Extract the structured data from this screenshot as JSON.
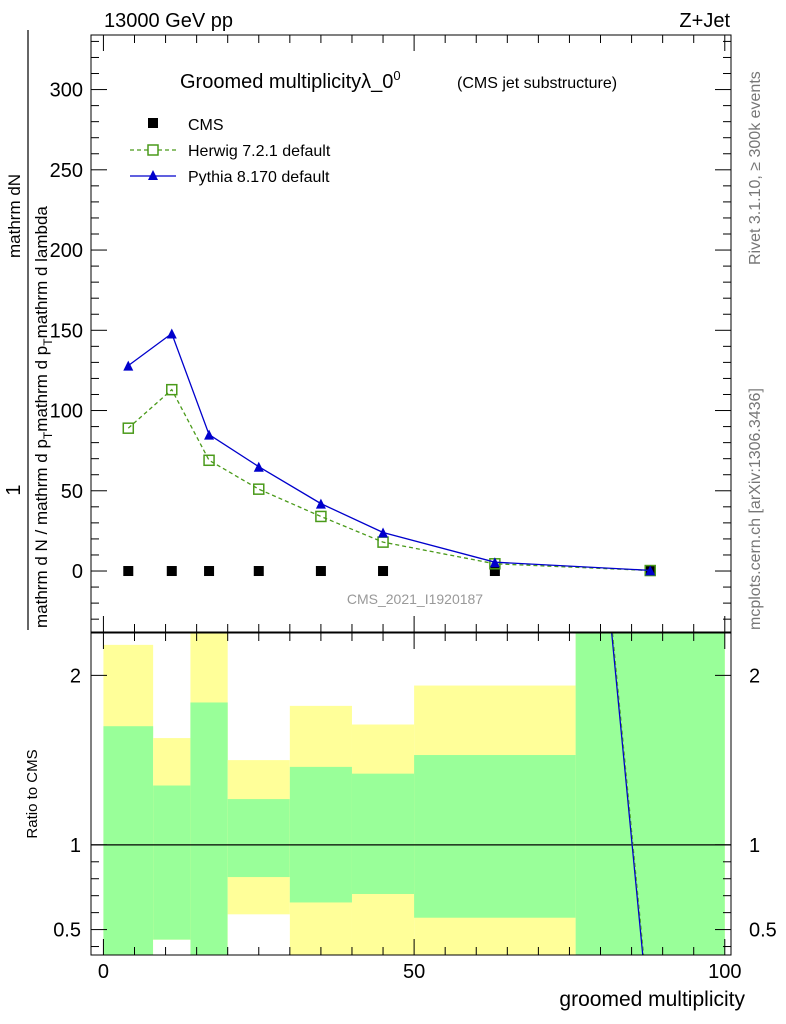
{
  "header": {
    "left": "13000 GeV pp",
    "right": "Z+Jet"
  },
  "side_labels": {
    "rivet": "Rivet 3.1.10, ≥ 300k events",
    "mcplots": "mcplots.cern.ch [arXiv:1306.3436]"
  },
  "chart_data": [
    {
      "type": "line",
      "title": "Groomed multiplicityλ_0",
      "title_sup": "0",
      "subtitle": "(CMS jet substructure)",
      "watermark": "CMS_2021_I1920187",
      "ylabel": {
        "num_1": "1",
        "num_2": "mathrm dN",
        "den_1": "mathrm d N / mathrm d p",
        "den_sub": "T",
        "den_2": "mathrm d p",
        "den_2_sub": "T",
        "den_3": "mathrm d lambda"
      },
      "xlim": [
        -2,
        101
      ],
      "ylim": [
        -38,
        334
      ],
      "y_ticks": [
        0,
        50,
        100,
        150,
        200,
        250,
        300
      ],
      "y_tick_labels": [
        "0",
        "50",
        "100",
        "150",
        "200",
        "250",
        "300"
      ],
      "legend": {
        "placement": "top-left",
        "entries": [
          "CMS",
          "Herwig 7.2.1 default",
          "Pythia 8.170 default"
        ]
      },
      "series": [
        {
          "name": "CMS",
          "marker": "square",
          "color": "#000000",
          "x": [
            4,
            11,
            17,
            25,
            35,
            45,
            63,
            88
          ],
          "values": [
            0,
            0,
            0,
            0,
            0,
            0,
            0,
            0
          ]
        },
        {
          "name": "Herwig 7.2.1 default",
          "marker": "open-square",
          "color": "#4a9a1a",
          "dashed": true,
          "x": [
            4,
            11,
            17,
            25,
            35,
            45,
            63,
            88
          ],
          "values": [
            89,
            113,
            69,
            51,
            34,
            18,
            4.5,
            0.3
          ]
        },
        {
          "name": "Pythia 8.170 default",
          "marker": "triangle",
          "color": "#0000cc",
          "dashed": false,
          "x": [
            4,
            11,
            17,
            25,
            35,
            45,
            63,
            88
          ],
          "values": [
            128,
            148,
            85,
            65,
            42,
            24,
            5.5,
            0.4
          ]
        }
      ]
    },
    {
      "type": "area",
      "ylabel": "Ratio to CMS",
      "xlabel": "groomed multiplicity",
      "xlim": [
        -2,
        101
      ],
      "ylim": [
        0.35,
        2.25
      ],
      "x_ticks": [
        0,
        50,
        100
      ],
      "x_tick_labels": [
        "0",
        "50",
        "100"
      ],
      "y_ticks": [
        0.5,
        1,
        2
      ],
      "y_tick_labels": [
        "0.5",
        "1",
        "2"
      ],
      "reference_line": 1,
      "bands": {
        "green_color": "#99ff99",
        "yellow_color": "#ffff99",
        "bins": [
          {
            "x0": 0,
            "x1": 8,
            "green": [
              0.35,
              1.7
            ],
            "yellow": [
              0.35,
              2.18
            ]
          },
          {
            "x0": 8,
            "x1": 14,
            "green": [
              0.44,
              1.35
            ],
            "yellow": [
              0.35,
              1.63
            ]
          },
          {
            "x0": 14,
            "x1": 20,
            "green": [
              0.35,
              1.84
            ],
            "yellow": [
              0.35,
              2.25
            ]
          },
          {
            "x0": 20,
            "x1": 30,
            "green": [
              0.81,
              1.27
            ],
            "yellow": [
              0.35,
              1.5
            ]
          },
          {
            "x0": 30,
            "x1": 40,
            "green": [
              0.66,
              1.46
            ],
            "yellow": [
              0.35,
              1.82
            ]
          },
          {
            "x0": 40,
            "x1": 50,
            "green": [
              0.71,
              1.42
            ],
            "yellow": [
              0.35,
              1.71
            ]
          },
          {
            "x0": 50,
            "x1": 76,
            "green": [
              0.57,
              1.53
            ],
            "yellow": [
              0.35,
              1.94
            ]
          },
          {
            "x0": 76,
            "x1": 100,
            "green": [
              0.35,
              2.25
            ],
            "yellow": [
              0.35,
              2.25
            ]
          }
        ],
        "white_patches": [
          {
            "x0": 8,
            "x1": 14,
            "y0": 0.35,
            "y1": 0.44
          },
          {
            "x0": 20,
            "x1": 30,
            "y0": 0.35,
            "y1": 0.59
          }
        ]
      },
      "ratio_line": {
        "color": "#0000cc",
        "points": [
          [
            81.8,
            2.25
          ],
          [
            86.8,
            0.35
          ]
        ]
      }
    }
  ]
}
